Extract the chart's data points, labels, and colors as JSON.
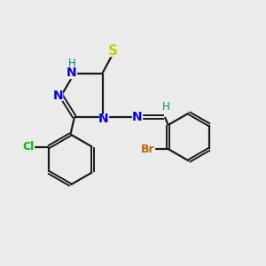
{
  "background_color": "#ebebeb",
  "bond_color": "#1a1a1a",
  "N_color": "#0000ee",
  "S_color": "#cccc00",
  "Cl_color": "#00bb00",
  "Br_color": "#bb6600",
  "H_color": "#008888",
  "figsize": [
    3.0,
    3.0
  ],
  "dpi": 100,
  "xlim": [
    0,
    10
  ],
  "ylim": [
    0,
    10
  ]
}
